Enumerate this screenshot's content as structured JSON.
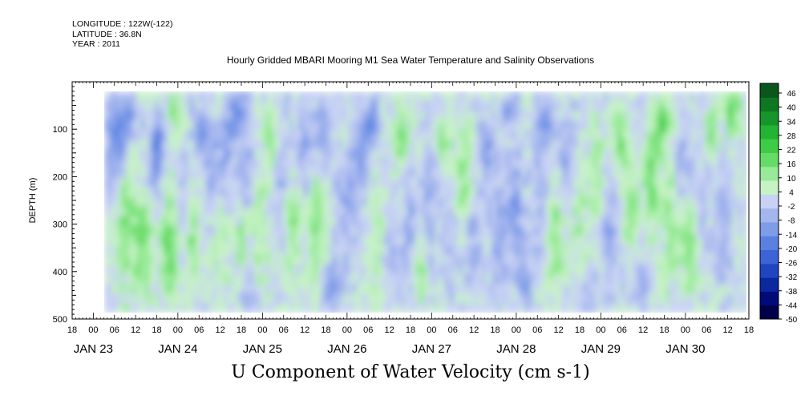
{
  "header": {
    "longitude": "LONGITUDE : 122W(-122)",
    "latitude": "LATITUDE : 36.8N",
    "year": "YEAR : 2011"
  },
  "chart_data": {
    "type": "heatmap",
    "title": "Hourly Gridded MBARI Mooring M1 Sea Water Temperature and Salinity Observations",
    "bottom_title": "U Component of Water Velocity (cm s-1)",
    "ylabel": "DEPTH (m)",
    "y_ticks": [
      100,
      200,
      300,
      400,
      500
    ],
    "ylim": [
      500,
      0
    ],
    "y_data_range": [
      20,
      485
    ],
    "y_direction": "depth increases downward",
    "x_range_hours": [
      "2011-01-22T18:00",
      "2011-01-30T18:00"
    ],
    "x_hour_labels": [
      "18",
      "00",
      "06",
      "12",
      "18",
      "00",
      "06",
      "12",
      "18",
      "00",
      "06",
      "12",
      "18",
      "00",
      "06",
      "12",
      "18",
      "00",
      "06",
      "12",
      "18",
      "00",
      "06",
      "12",
      "18",
      "00",
      "06",
      "12",
      "18",
      "00",
      "06",
      "12",
      "18"
    ],
    "x_date_labels": [
      "JAN 23",
      "JAN 24",
      "JAN 25",
      "JAN 26",
      "JAN 27",
      "JAN 28",
      "JAN 29",
      "JAN 30"
    ],
    "colorbar": {
      "levels": [
        -50,
        -44,
        -38,
        -32,
        -26,
        -20,
        -14,
        -8,
        -2,
        4,
        10,
        16,
        22,
        28,
        34,
        40,
        46
      ],
      "label_values": [
        "46",
        "40",
        "34",
        "28",
        "22",
        "16",
        "10",
        "4",
        "-2",
        "-8",
        "-14",
        "-20",
        "-26",
        "-32",
        "-38",
        "-44",
        "-50"
      ],
      "colors": [
        "#00004a",
        "#000a78",
        "#0a28a0",
        "#1f46c0",
        "#3c64d6",
        "#5a80e2",
        "#7e9ce8",
        "#a4b6ee",
        "#c8d2f4",
        "#c6f2c6",
        "#98ea98",
        "#66dc66",
        "#3ecc46",
        "#22b432",
        "#16962a",
        "#0f7622",
        "#0a561c"
      ]
    },
    "field_description": "Mostly weak flow between -15 and +20 cm/s; negative (blue) bands near surface around Jan 23-24, Jan 26 and Jan 28; positive (green) columns at depth around Jan 24, Jan 25, Jan 29-30."
  }
}
